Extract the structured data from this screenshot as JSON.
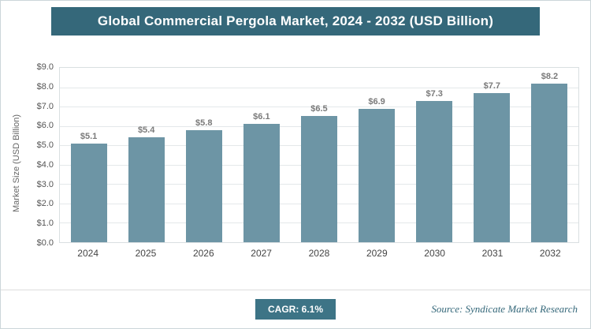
{
  "chart_data": {
    "type": "bar",
    "title": "Global Commercial Pergola Market, 2024 - 2032 (USD Billion)",
    "categories": [
      "2024",
      "2025",
      "2026",
      "2027",
      "2028",
      "2029",
      "2030",
      "2031",
      "2032"
    ],
    "values": [
      5.1,
      5.4,
      5.8,
      6.1,
      6.5,
      6.9,
      7.3,
      7.7,
      8.2
    ],
    "value_labels": [
      "$5.1",
      "$5.4",
      "$5.8",
      "$6.1",
      "$6.5",
      "$6.9",
      "$7.3",
      "$7.7",
      "$8.2"
    ],
    "xlabel": "",
    "ylabel": "Market Size (USD Billion)",
    "ylim": [
      0,
      9
    ],
    "ytick_step": 1,
    "ytick_labels": [
      "$0.0",
      "$1.0",
      "$2.0",
      "$3.0",
      "$4.0",
      "$5.0",
      "$6.0",
      "$7.0",
      "$8.0",
      "$9.0"
    ],
    "grid": true,
    "legend": "none",
    "colors": {
      "bar": "#6d95a5",
      "title_bg": "#35687a",
      "badge_bg": "#3d7486"
    }
  },
  "footer": {
    "cagr_label": "CAGR: 6.1%",
    "source": "Source: Syndicate Market Research"
  }
}
